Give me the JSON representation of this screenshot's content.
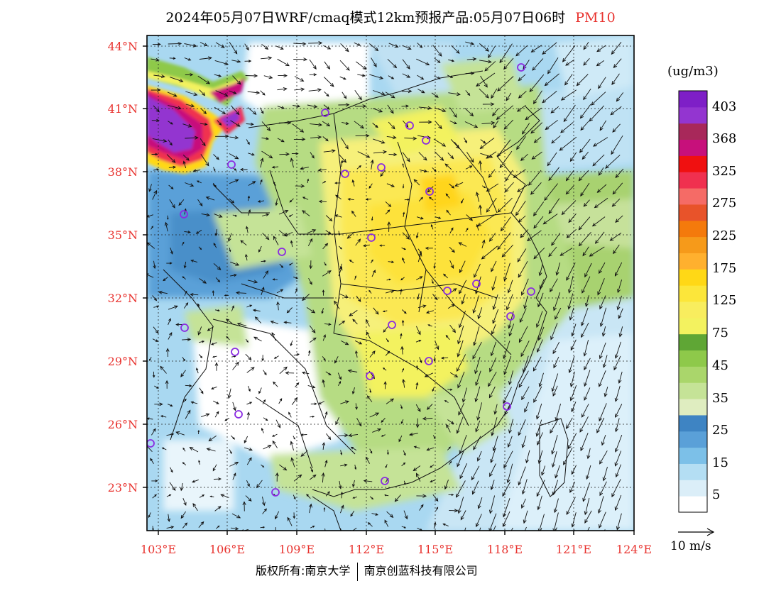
{
  "header": {
    "title": "2024年05月07日WRF/cmaq模式12km预报产品:05月07日06时",
    "pollutant": "PM10"
  },
  "map": {
    "lat_labels": [
      "44°N",
      "41°N",
      "38°N",
      "35°N",
      "32°N",
      "29°N",
      "26°N",
      "23°N"
    ],
    "lon_labels": [
      "103°E",
      "106°E",
      "109°E",
      "112°E",
      "115°E",
      "118°E",
      "121°E",
      "124°E"
    ]
  },
  "colorbar": {
    "unit": "(ug/m3)",
    "colors": [
      "#ffffff",
      "#dbeef8",
      "#b4def3",
      "#7cc0e8",
      "#5aa0d8",
      "#3e84c3",
      "#dfedc0",
      "#c5e397",
      "#aad66b",
      "#8ec94a",
      "#5fa635",
      "#f3f25f",
      "#f8ed5e",
      "#fce63a",
      "#ffd816",
      "#ffb02e",
      "#f69a1a",
      "#f47a0c",
      "#e8532a",
      "#f56b66",
      "#f0304f",
      "#f01010",
      "#c7107b",
      "#a8285a",
      "#9335d0",
      "#7e1fc7"
    ],
    "tick_labels": [
      "5",
      "15",
      "25",
      "35",
      "45",
      "75",
      "125",
      "175",
      "225",
      "275",
      "325",
      "368",
      "403"
    ]
  },
  "wind_reference": {
    "label": "10 m/s"
  },
  "footer": {
    "copyright": "版权所有:南京大学",
    "company": "南京创蓝科技有限公司"
  }
}
